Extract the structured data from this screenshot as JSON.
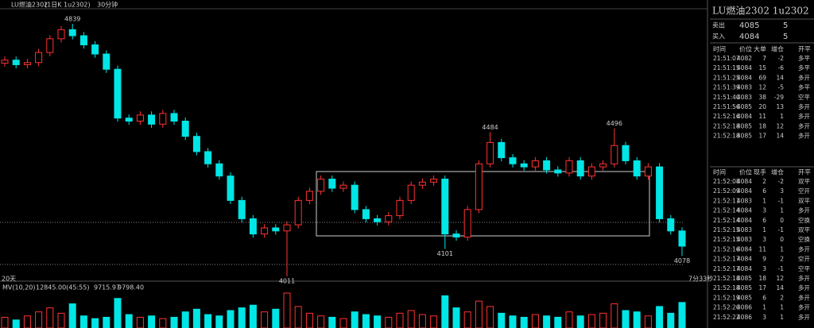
{
  "header": {
    "title": "LU燃油2302",
    "contract": "(1日K 1u2302)",
    "period": "30分钟"
  },
  "chart": {
    "open": [
      4710,
      4720,
      4705,
      4712,
      4745,
      4790,
      4820,
      4800,
      4770,
      4740,
      4690,
      4530,
      4520,
      4540,
      4510,
      4545,
      4520,
      4470,
      4420,
      4380,
      4340,
      4260,
      4200,
      4150,
      4170,
      4160,
      4180,
      4260,
      4290,
      4330,
      4300,
      4310,
      4230,
      4200,
      4190,
      4210,
      4260,
      4310,
      4320,
      4330,
      4150,
      4140,
      4230,
      4380,
      4450,
      4400,
      4380,
      4370,
      4390,
      4360,
      4350,
      4390,
      4340,
      4370,
      4380,
      4440,
      4390,
      4340,
      4370,
      4200,
      4160
    ],
    "close": [
      4720,
      4705,
      4712,
      4745,
      4790,
      4820,
      4800,
      4770,
      4740,
      4690,
      4530,
      4520,
      4540,
      4510,
      4545,
      4520,
      4470,
      4420,
      4380,
      4340,
      4260,
      4200,
      4150,
      4170,
      4160,
      4180,
      4260,
      4290,
      4330,
      4300,
      4310,
      4230,
      4200,
      4190,
      4210,
      4260,
      4310,
      4320,
      4330,
      4150,
      4140,
      4230,
      4380,
      4450,
      4400,
      4380,
      4370,
      4390,
      4360,
      4350,
      4390,
      4340,
      4370,
      4380,
      4440,
      4390,
      4340,
      4370,
      4200,
      4160,
      4110
    ],
    "high": [
      4732,
      4732,
      4724,
      4757,
      4802,
      4832,
      4839,
      4812,
      4782,
      4752,
      4702,
      4542,
      4552,
      4552,
      4557,
      4557,
      4532,
      4482,
      4432,
      4392,
      4352,
      4272,
      4212,
      4182,
      4182,
      4192,
      4272,
      4302,
      4342,
      4342,
      4322,
      4322,
      4242,
      4212,
      4222,
      4272,
      4322,
      4332,
      4342,
      4342,
      4162,
      4242,
      4392,
      4484,
      4462,
      4412,
      4392,
      4402,
      4402,
      4372,
      4402,
      4402,
      4382,
      4392,
      4496,
      4452,
      4402,
      4382,
      4382,
      4212,
      4172
    ],
    "low": [
      4698,
      4693,
      4693,
      4700,
      4733,
      4778,
      4788,
      4758,
      4728,
      4678,
      4518,
      4508,
      4508,
      4498,
      4498,
      4508,
      4458,
      4408,
      4368,
      4328,
      4248,
      4188,
      4138,
      4138,
      4148,
      4011,
      4168,
      4248,
      4278,
      4288,
      4288,
      4218,
      4188,
      4178,
      4178,
      4198,
      4248,
      4298,
      4308,
      4101,
      4128,
      4128,
      4218,
      4368,
      4388,
      4368,
      4358,
      4358,
      4348,
      4338,
      4338,
      4328,
      4328,
      4358,
      4368,
      4378,
      4328,
      4328,
      4188,
      4148,
      4078
    ],
    "volume": [
      8000,
      6000,
      9000,
      12000,
      15000,
      11000,
      18000,
      9000,
      7000,
      8000,
      22000,
      10000,
      8000,
      9000,
      7000,
      8000,
      12000,
      14000,
      10000,
      9000,
      13000,
      15000,
      17000,
      12000,
      14000,
      26000,
      16000,
      11000,
      9000,
      8000,
      7000,
      12000,
      10000,
      9000,
      8000,
      11000,
      13000,
      10000,
      9000,
      24000,
      15000,
      12000,
      20000,
      16000,
      11000,
      9000,
      8000,
      10000,
      9000,
      8000,
      12000,
      9000,
      10000,
      11000,
      18000,
      13000,
      12000,
      9000,
      16000,
      11000,
      19000
    ],
    "up_color": "#ff3232",
    "down_color": "#00e5e5"
  },
  "indicator": {
    "name": "MV(10,20)",
    "values": [
      "12845.00(45:55)",
      "9715.97",
      "9798.40"
    ]
  },
  "footer": {
    "left": "20天",
    "right": "7分33秒"
  },
  "panel": {
    "title": "LU燃油2302  1u2302",
    "quotes": [
      {
        "label": "卖出",
        "price": 4085,
        "qty": 5
      },
      {
        "label": "买入",
        "price": 4084,
        "qty": 5
      }
    ],
    "table1": {
      "headers": [
        "时间",
        "价位",
        "大单",
        "增仓",
        "开平"
      ],
      "rows": [
        [
          "21:51:07",
          4082,
          7,
          -2,
          "多平"
        ],
        [
          "21:51:15",
          4084,
          15,
          -6,
          "多平"
        ],
        [
          "21:51:25",
          4084,
          69,
          14,
          "多开"
        ],
        [
          "21:51:39",
          4083,
          12,
          -5,
          "多平"
        ],
        [
          "21:51:40",
          4083,
          38,
          -29,
          "空平"
        ],
        [
          "21:51:56",
          4085,
          20,
          13,
          "多开"
        ],
        [
          "21:52:16",
          4084,
          11,
          1,
          "多开"
        ],
        [
          "21:52:18",
          4085,
          18,
          12,
          "多开"
        ],
        [
          "21:52:18",
          4085,
          17,
          14,
          "多开"
        ]
      ]
    },
    "table2": {
      "headers": [
        "时间",
        "价位",
        "现手",
        "增仓",
        "开平"
      ],
      "rows": [
        [
          "21:52:08",
          4084,
          2,
          -2,
          "双平"
        ],
        [
          "21:52:09",
          4084,
          6,
          3,
          "空开"
        ],
        [
          "21:52:11",
          4083,
          1,
          -1,
          "双平"
        ],
        [
          "21:52:14",
          4084,
          3,
          1,
          "多开"
        ],
        [
          "21:52:14",
          4084,
          6,
          0,
          "空换"
        ],
        [
          "21:52:15",
          4083,
          1,
          -1,
          "双平"
        ],
        [
          "21:52:15",
          4083,
          3,
          0,
          "空换"
        ],
        [
          "21:52:16",
          4084,
          11,
          1,
          "多开"
        ],
        [
          "21:52:17",
          4084,
          9,
          2,
          "空开"
        ],
        [
          "21:52:17",
          4084,
          3,
          -1,
          "空平"
        ],
        [
          "21:52:18",
          4085,
          18,
          12,
          "多开"
        ],
        [
          "21:52:18",
          4085,
          17,
          14,
          "多开"
        ],
        [
          "21:52:19",
          4085,
          6,
          2,
          "多开"
        ],
        [
          "21:52:20",
          4086,
          1,
          1,
          "多开"
        ],
        [
          "21:52:22",
          4086,
          3,
          1,
          "多开"
        ]
      ]
    }
  }
}
